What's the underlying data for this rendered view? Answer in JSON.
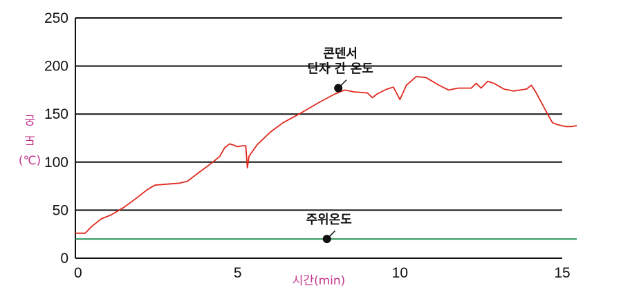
{
  "chart_data": {
    "type": "line",
    "title": "",
    "xlabel": "시간(min)",
    "ylabel_lines": [
      "온",
      "도",
      "(℃)"
    ],
    "xlim": [
      0,
      15
    ],
    "ylim": [
      0,
      250
    ],
    "x_ticks": [
      0,
      5,
      10,
      15
    ],
    "y_ticks": [
      0,
      50,
      100,
      150,
      200,
      250
    ],
    "grid": "horizontal",
    "series": [
      {
        "color": "#e0291d",
        "points": [
          [
            0,
            26
          ],
          [
            0.3,
            26
          ],
          [
            0.5,
            33
          ],
          [
            0.8,
            41
          ],
          [
            1.1,
            45
          ],
          [
            1.5,
            53
          ],
          [
            1.9,
            63
          ],
          [
            2.2,
            71
          ],
          [
            2.45,
            76
          ],
          [
            2.8,
            77
          ],
          [
            3.2,
            78
          ],
          [
            3.45,
            80
          ],
          [
            3.8,
            89
          ],
          [
            4.2,
            99
          ],
          [
            4.45,
            106
          ],
          [
            4.6,
            115
          ],
          [
            4.75,
            119
          ],
          [
            4.85,
            118
          ],
          [
            5.0,
            116
          ],
          [
            5.15,
            117
          ],
          [
            5.25,
            117
          ],
          [
            5.3,
            94
          ],
          [
            5.35,
            106
          ],
          [
            5.6,
            118
          ],
          [
            6.0,
            131
          ],
          [
            6.4,
            141
          ],
          [
            7.0,
            152
          ],
          [
            7.5,
            162
          ],
          [
            8.0,
            171
          ],
          [
            8.3,
            175
          ],
          [
            8.6,
            173
          ],
          [
            9.0,
            172
          ],
          [
            9.15,
            167
          ],
          [
            9.3,
            171
          ],
          [
            9.6,
            176
          ],
          [
            9.8,
            178
          ],
          [
            10.0,
            165
          ],
          [
            10.2,
            180
          ],
          [
            10.5,
            189
          ],
          [
            10.8,
            188
          ],
          [
            11.2,
            180
          ],
          [
            11.5,
            175
          ],
          [
            11.8,
            177
          ],
          [
            12.2,
            177
          ],
          [
            12.35,
            182
          ],
          [
            12.5,
            177
          ],
          [
            12.7,
            184
          ],
          [
            12.9,
            182
          ],
          [
            13.2,
            176
          ],
          [
            13.5,
            174
          ],
          [
            13.9,
            176
          ],
          [
            14.05,
            180
          ],
          [
            14.2,
            172
          ],
          [
            14.5,
            153
          ],
          [
            14.7,
            141
          ],
          [
            14.85,
            139
          ],
          [
            15.1,
            137
          ],
          [
            15.3,
            137
          ],
          [
            15.45,
            138
          ]
        ]
      },
      {
        "color": "#1e8a4f",
        "points": [
          [
            0,
            20
          ],
          [
            15.45,
            20
          ]
        ]
      }
    ],
    "annotations": [
      {
        "lines": [
          "콘덴서",
          "단자 간 온도"
        ],
        "point": [
          8.1,
          177
        ]
      },
      {
        "lines": [
          "주위온도"
        ],
        "point": [
          7.75,
          20
        ]
      }
    ]
  }
}
